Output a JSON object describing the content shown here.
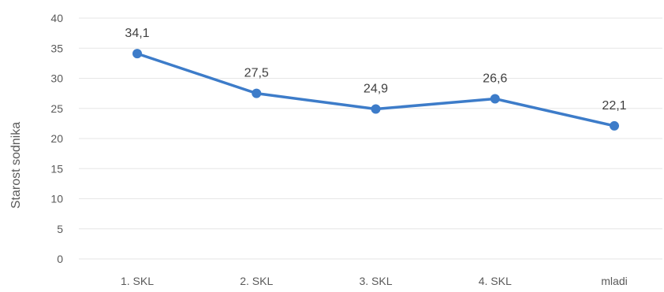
{
  "chart_data": {
    "type": "line",
    "categories": [
      "1. SKL",
      "2. SKL",
      "3. SKL",
      "4. SKL",
      "mladi"
    ],
    "values": [
      34.1,
      27.5,
      24.9,
      26.6,
      22.1
    ],
    "data_labels": [
      "34,1",
      "27,5",
      "24,9",
      "26,6",
      "22,1"
    ],
    "ylabel": "Starost sodnika",
    "xlabel": "",
    "ylim": [
      0,
      40
    ],
    "yticks": [
      "0",
      "5",
      "10",
      "15",
      "20",
      "25",
      "30",
      "35",
      "40"
    ],
    "grid": true,
    "line_color": "#3d7cc9",
    "marker_color": "#3d7cc9"
  }
}
